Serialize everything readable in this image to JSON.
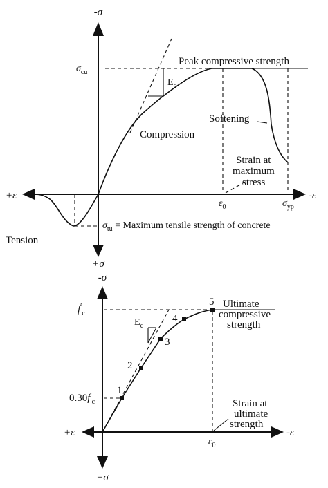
{
  "top_diagram": {
    "axis_up": "-σ",
    "axis_down": "+σ",
    "axis_left": "+ε",
    "axis_right": "-ε",
    "sigma_cu": {
      "main": "σ",
      "sub": "cu"
    },
    "sigma_tu_label": {
      "main": "σ",
      "sub": "tu",
      "rest": " = Maximum tensile strength of concrete"
    },
    "peak_label": "Peak compressive strength",
    "ec_label": {
      "main": "E",
      "sub": "c"
    },
    "compression_label": "Compression",
    "softening_label": "Softening",
    "strain_max_stress": [
      "Strain at",
      "maximum",
      "stress"
    ],
    "tension_label": "Tension",
    "epsilon0": {
      "main": "ε",
      "sub": "0"
    },
    "sigma_yp": {
      "main": "σ",
      "sub": "yp"
    }
  },
  "bottom_diagram": {
    "axis_up": "-σ",
    "axis_down": "+σ",
    "axis_left": "+ε",
    "axis_right": "-ε",
    "fc_label": {
      "main": "f",
      "sup": "′",
      "sub": "c"
    },
    "fc30_label": {
      "prefix": "0.30",
      "main": "f",
      "sup": "′",
      "sub": "c"
    },
    "ec_label": {
      "main": "E",
      "sub": "c"
    },
    "points": [
      "1",
      "2",
      "3",
      "4",
      "5"
    ],
    "ultimate_label": [
      "Ultimate",
      "compressive",
      "strength"
    ],
    "strain_ultimate": [
      "Strain at",
      "ultimate",
      "strength"
    ],
    "epsilon0": {
      "main": "ε",
      "sub": "0"
    }
  }
}
